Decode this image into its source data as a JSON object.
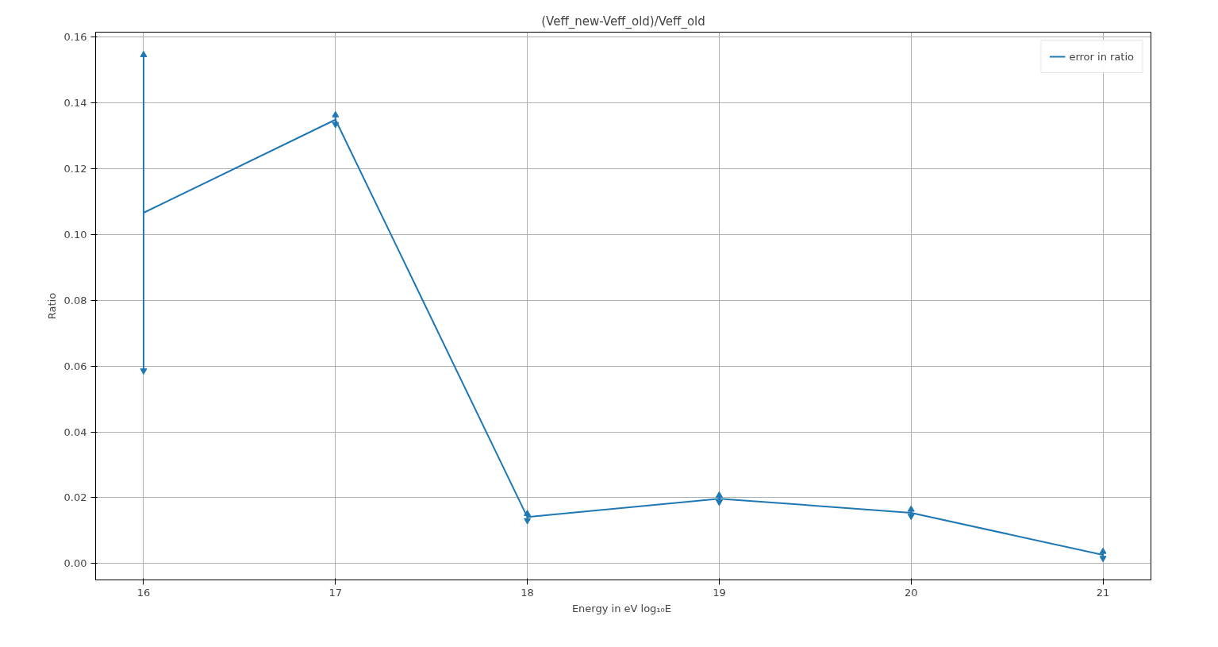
{
  "chart_data": {
    "type": "line",
    "title": "(Veff_new-Veff_old)/Veff_old",
    "xlabel": "Energy in eV  log₁₀E",
    "ylabel": "Ratio",
    "x": [
      16,
      17,
      18,
      19,
      20,
      21
    ],
    "series": [
      {
        "name": "error in ratio",
        "color": "#1f77b4",
        "values": [
          0.1066,
          0.1349,
          0.0141,
          0.0197,
          0.0154,
          0.0026
        ],
        "errors": [
          0.048,
          0.0014,
          0.001,
          0.001,
          0.001,
          0.001
        ]
      }
    ],
    "xlim": [
      15.75,
      21.25
    ],
    "ylim": [
      -0.005,
      0.1615
    ],
    "xticks": [
      16,
      17,
      18,
      19,
      20,
      21
    ],
    "yticks": [
      {
        "value": 0,
        "label": "0.00"
      },
      {
        "value": 0.02,
        "label": "0.02"
      },
      {
        "value": 0.04,
        "label": "0.04"
      },
      {
        "value": 0.06,
        "label": "0.06"
      },
      {
        "value": 0.08,
        "label": "0.08"
      },
      {
        "value": 0.1,
        "label": "0.10"
      },
      {
        "value": 0.12,
        "label": "0.12"
      },
      {
        "value": 0.14,
        "label": "0.14"
      },
      {
        "value": 0.16,
        "label": "0.16"
      }
    ],
    "grid": true,
    "legend": "top right"
  }
}
